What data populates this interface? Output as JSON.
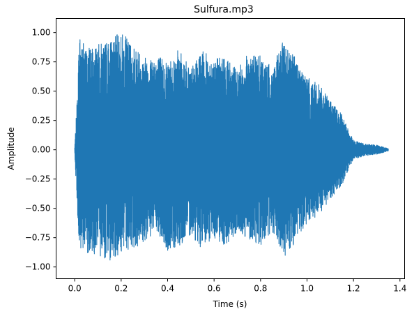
{
  "chart_data": {
    "type": "line",
    "title": "Sulfura.mp3",
    "xlabel": "Time (s)",
    "ylabel": "Amplitude",
    "xlim": [
      -0.08,
      1.42
    ],
    "ylim": [
      -1.1,
      1.12
    ],
    "x_ticks": [
      0.0,
      0.2,
      0.4,
      0.6,
      0.8,
      1.0,
      1.2,
      1.4
    ],
    "x_tick_labels": [
      "0.0",
      "0.2",
      "0.4",
      "0.6",
      "0.8",
      "1.0",
      "1.2",
      "1.4"
    ],
    "y_ticks": [
      -1.0,
      -0.75,
      -0.5,
      -0.25,
      0.0,
      0.25,
      0.5,
      0.75,
      1.0
    ],
    "y_tick_labels": [
      "−1.00",
      "−0.75",
      "−0.50",
      "−0.25",
      "0.00",
      "0.25",
      "0.50",
      "0.75",
      "1.00"
    ],
    "grid": false,
    "series_color": "#1f77b4",
    "envelope": {
      "time": [
        0.0,
        0.01,
        0.02,
        0.05,
        0.1,
        0.15,
        0.2,
        0.25,
        0.3,
        0.35,
        0.4,
        0.45,
        0.5,
        0.55,
        0.6,
        0.65,
        0.7,
        0.75,
        0.8,
        0.85,
        0.9,
        0.95,
        1.0,
        1.05,
        1.1,
        1.15,
        1.2,
        1.25,
        1.3,
        1.35
      ],
      "max": [
        0.02,
        0.42,
        1.0,
        0.88,
        0.9,
        0.93,
        1.01,
        0.9,
        0.8,
        0.82,
        0.76,
        0.86,
        0.7,
        0.84,
        0.78,
        0.8,
        0.68,
        0.84,
        0.8,
        0.7,
        0.94,
        0.8,
        0.62,
        0.56,
        0.42,
        0.3,
        0.08,
        0.05,
        0.04,
        0.01
      ],
      "min": [
        -0.02,
        -0.45,
        -0.9,
        -0.88,
        -0.9,
        -0.95,
        -0.88,
        -0.84,
        -0.8,
        -0.7,
        -0.88,
        -0.82,
        -0.72,
        -0.86,
        -0.75,
        -0.82,
        -0.72,
        -0.76,
        -0.82,
        -0.72,
        -0.92,
        -0.8,
        -0.64,
        -0.58,
        -0.42,
        -0.3,
        -0.08,
        -0.05,
        -0.04,
        -0.01
      ]
    }
  }
}
